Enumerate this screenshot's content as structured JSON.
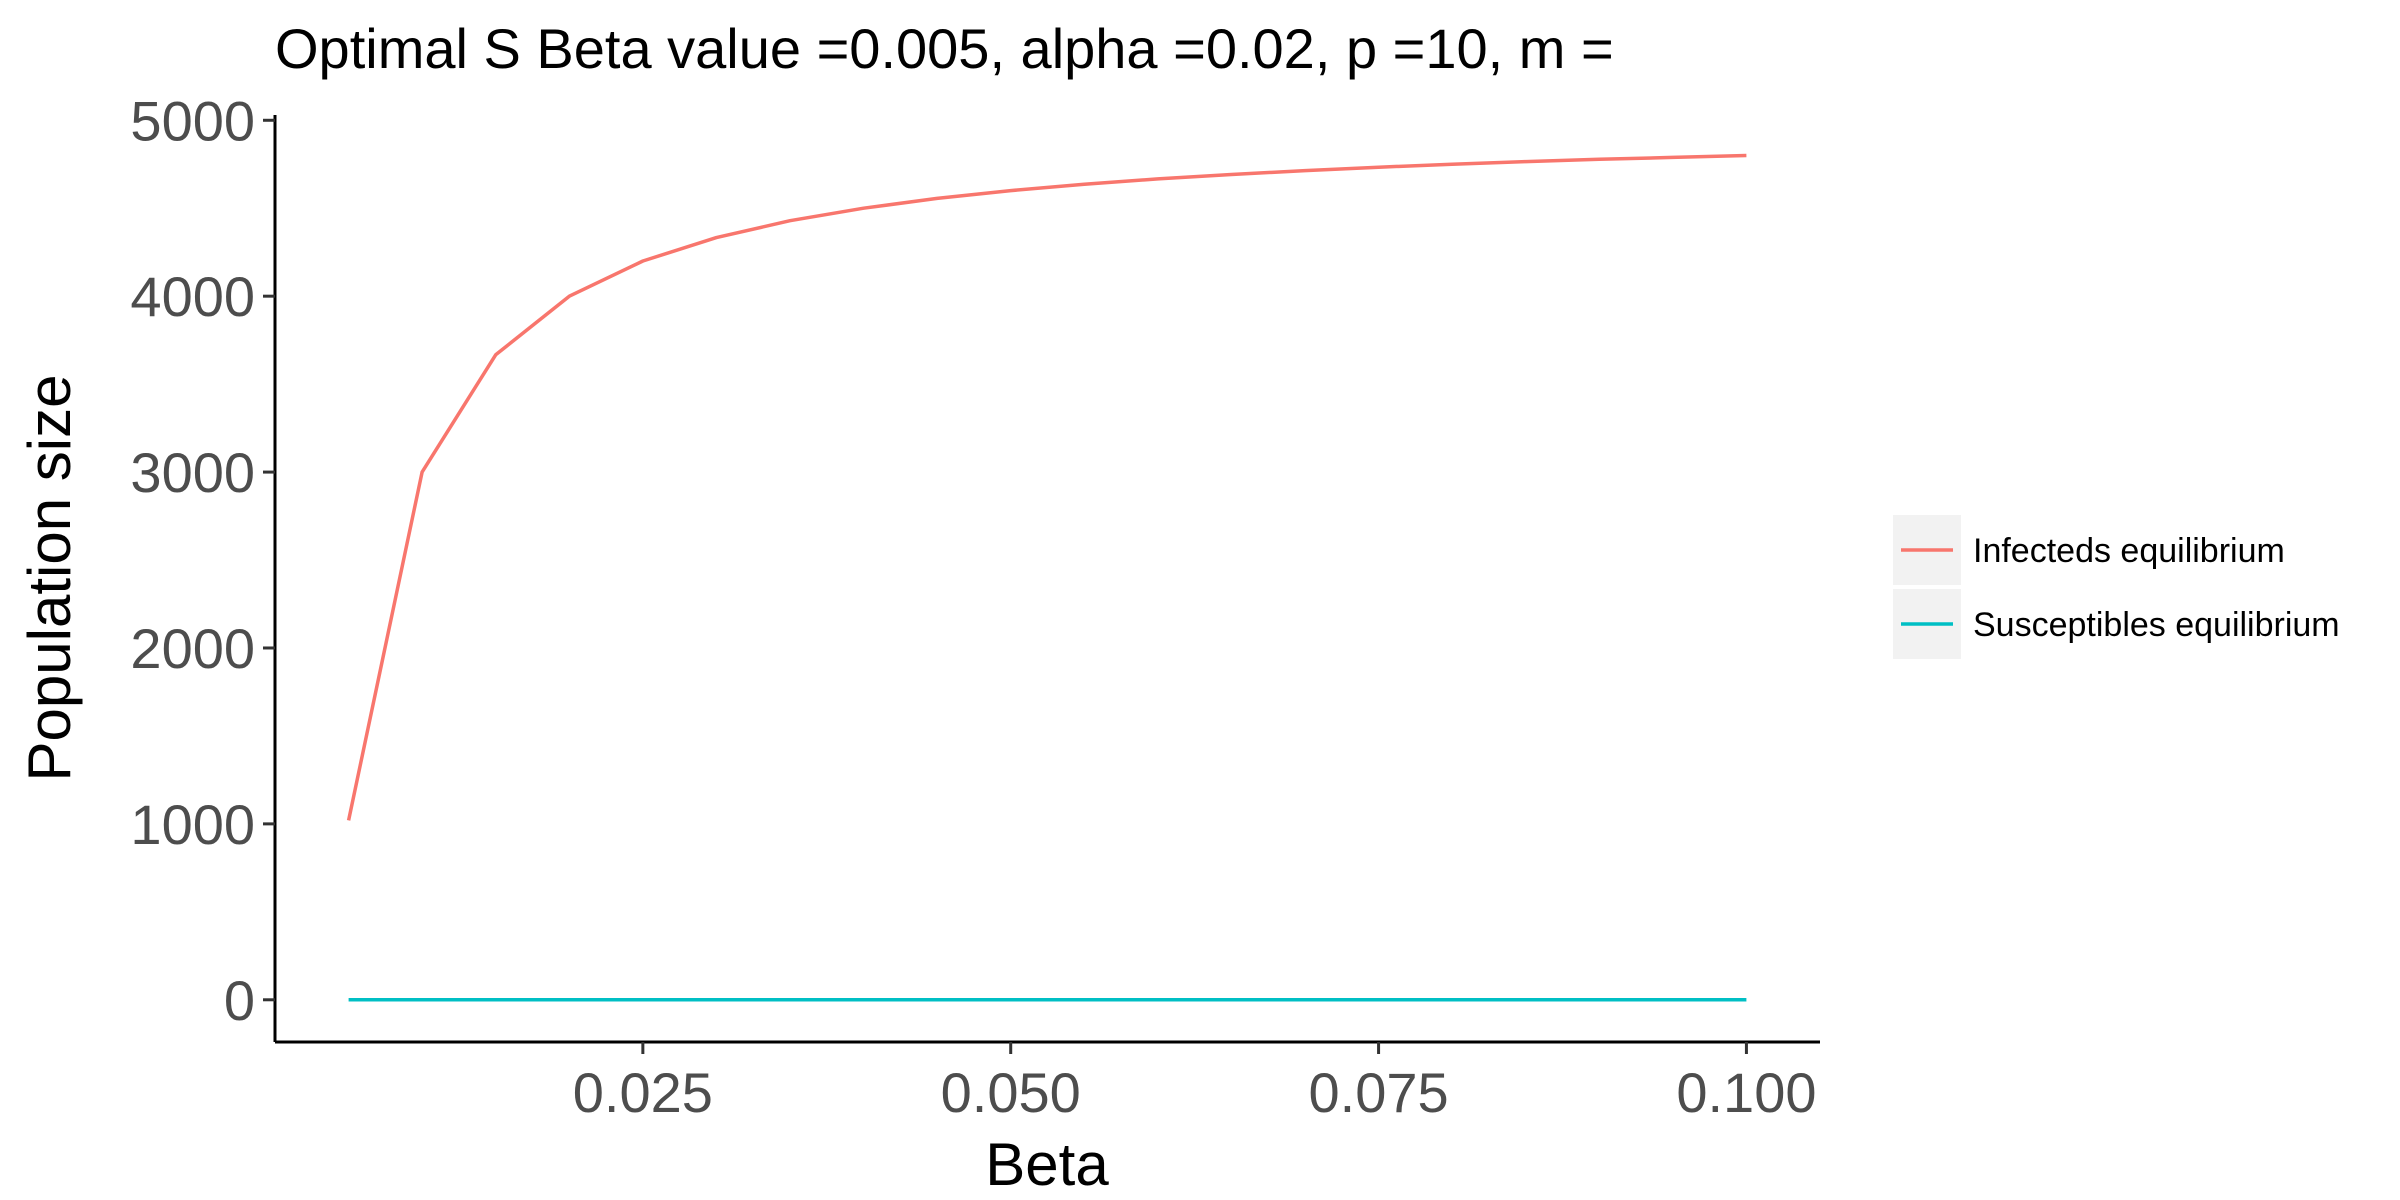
{
  "chart_data": {
    "type": "line",
    "title": "Optimal S Beta value =0.005, alpha =0.02, p =10, m =",
    "xlabel": "Beta",
    "ylabel": "Population size",
    "xlim": [
      0.0,
      0.105
    ],
    "ylim": [
      -240,
      5030
    ],
    "x_ticks": [
      0.025,
      0.05,
      0.075,
      0.1
    ],
    "x_tick_labels": [
      "0.025",
      "0.050",
      "0.075",
      "0.100"
    ],
    "y_ticks": [
      0,
      1000,
      2000,
      3000,
      4000,
      5000
    ],
    "y_tick_labels": [
      "0",
      "1000",
      "2000",
      "3000",
      "4000",
      "5000"
    ],
    "grid": false,
    "legend_position": "right",
    "x": [
      0.005,
      0.01,
      0.015,
      0.02,
      0.025,
      0.03,
      0.035,
      0.04,
      0.045,
      0.05,
      0.055,
      0.06,
      0.065,
      0.07,
      0.075,
      0.08,
      0.085,
      0.09,
      0.095,
      0.1
    ],
    "series": [
      {
        "name": "Infecteds equilibrium",
        "color": "#F8766D",
        "values": [
          1020,
          3000,
          3667,
          4000,
          4200,
          4333,
          4429,
          4500,
          4556,
          4600,
          4636,
          4667,
          4692,
          4714,
          4733,
          4750,
          4765,
          4778,
          4789,
          4800
        ]
      },
      {
        "name": "Susceptibles equilibrium",
        "color": "#00BFC4",
        "values": [
          0,
          0,
          0,
          0,
          0,
          0,
          0,
          0,
          0,
          0,
          0,
          0,
          0,
          0,
          0,
          0,
          0,
          0,
          0,
          0
        ]
      }
    ]
  }
}
